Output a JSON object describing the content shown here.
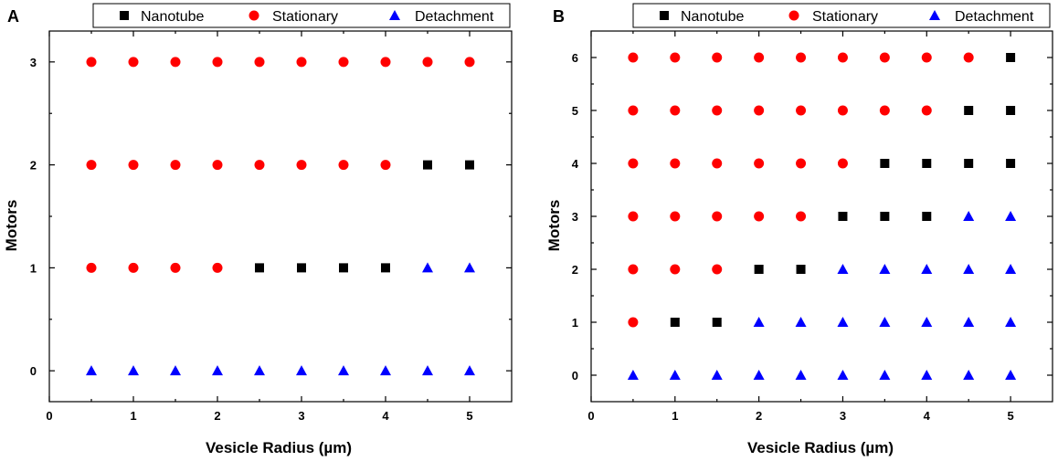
{
  "chart_data": [
    {
      "type": "scatter",
      "panel_label": "A",
      "xlabel": "Vesicle Radius (µm)",
      "ylabel": "Motors",
      "xlim": [
        0,
        5.5
      ],
      "ylim": [
        -0.3,
        3.3
      ],
      "xticks": [
        0,
        1,
        2,
        3,
        4,
        5
      ],
      "yticks": [
        0,
        1,
        2,
        3
      ],
      "legend_position": "top",
      "series": [
        {
          "name": "Nanotube",
          "marker": "square",
          "color": "#000000",
          "points": [
            [
              2.5,
              1
            ],
            [
              3,
              1
            ],
            [
              3.5,
              1
            ],
            [
              4,
              1
            ],
            [
              4.5,
              2
            ],
            [
              5,
              2
            ]
          ]
        },
        {
          "name": "Stationary",
          "marker": "circle",
          "color": "#ff0000",
          "points": [
            [
              0.5,
              1
            ],
            [
              1,
              1
            ],
            [
              1.5,
              1
            ],
            [
              2,
              1
            ],
            [
              0.5,
              2
            ],
            [
              1,
              2
            ],
            [
              1.5,
              2
            ],
            [
              2,
              2
            ],
            [
              2.5,
              2
            ],
            [
              3,
              2
            ],
            [
              3.5,
              2
            ],
            [
              4,
              2
            ],
            [
              0.5,
              3
            ],
            [
              1,
              3
            ],
            [
              1.5,
              3
            ],
            [
              2,
              3
            ],
            [
              2.5,
              3
            ],
            [
              3,
              3
            ],
            [
              3.5,
              3
            ],
            [
              4,
              3
            ],
            [
              4.5,
              3
            ],
            [
              5,
              3
            ]
          ]
        },
        {
          "name": "Detachment",
          "marker": "triangle",
          "color": "#0000ff",
          "points": [
            [
              0.5,
              0
            ],
            [
              1,
              0
            ],
            [
              1.5,
              0
            ],
            [
              2,
              0
            ],
            [
              2.5,
              0
            ],
            [
              3,
              0
            ],
            [
              3.5,
              0
            ],
            [
              4,
              0
            ],
            [
              4.5,
              0
            ],
            [
              5,
              0
            ],
            [
              4.5,
              1
            ],
            [
              5,
              1
            ]
          ]
        }
      ]
    },
    {
      "type": "scatter",
      "panel_label": "B",
      "xlabel": "Vesicle Radius (µm)",
      "ylabel": "Motors",
      "xlim": [
        0,
        5.5
      ],
      "ylim": [
        -0.5,
        6.5
      ],
      "xticks": [
        0,
        1,
        2,
        3,
        4,
        5
      ],
      "yticks": [
        0,
        1,
        2,
        3,
        4,
        5,
        6
      ],
      "legend_position": "top",
      "series": [
        {
          "name": "Nanotube",
          "marker": "square",
          "color": "#000000",
          "points": [
            [
              1,
              1
            ],
            [
              1.5,
              1
            ],
            [
              2,
              2
            ],
            [
              2.5,
              2
            ],
            [
              3,
              3
            ],
            [
              3.5,
              3
            ],
            [
              4,
              3
            ],
            [
              3.5,
              4
            ],
            [
              4,
              4
            ],
            [
              4.5,
              4
            ],
            [
              5,
              4
            ],
            [
              4.5,
              5
            ],
            [
              5,
              5
            ],
            [
              5,
              6
            ]
          ]
        },
        {
          "name": "Stationary",
          "marker": "circle",
          "color": "#ff0000",
          "points": [
            [
              0.5,
              1
            ],
            [
              0.5,
              2
            ],
            [
              1,
              2
            ],
            [
              1.5,
              2
            ],
            [
              0.5,
              3
            ],
            [
              1,
              3
            ],
            [
              1.5,
              3
            ],
            [
              2,
              3
            ],
            [
              2.5,
              3
            ],
            [
              0.5,
              4
            ],
            [
              1,
              4
            ],
            [
              1.5,
              4
            ],
            [
              2,
              4
            ],
            [
              2.5,
              4
            ],
            [
              3,
              4
            ],
            [
              0.5,
              5
            ],
            [
              1,
              5
            ],
            [
              1.5,
              5
            ],
            [
              2,
              5
            ],
            [
              2.5,
              5
            ],
            [
              3,
              5
            ],
            [
              3.5,
              5
            ],
            [
              4,
              5
            ],
            [
              0.5,
              6
            ],
            [
              1,
              6
            ],
            [
              1.5,
              6
            ],
            [
              2,
              6
            ],
            [
              2.5,
              6
            ],
            [
              3,
              6
            ],
            [
              3.5,
              6
            ],
            [
              4,
              6
            ],
            [
              4.5,
              6
            ]
          ]
        },
        {
          "name": "Detachment",
          "marker": "triangle",
          "color": "#0000ff",
          "points": [
            [
              0.5,
              0
            ],
            [
              1,
              0
            ],
            [
              1.5,
              0
            ],
            [
              2,
              0
            ],
            [
              2.5,
              0
            ],
            [
              3,
              0
            ],
            [
              3.5,
              0
            ],
            [
              4,
              0
            ],
            [
              4.5,
              0
            ],
            [
              5,
              0
            ],
            [
              2,
              1
            ],
            [
              2.5,
              1
            ],
            [
              3,
              1
            ],
            [
              3.5,
              1
            ],
            [
              4,
              1
            ],
            [
              4.5,
              1
            ],
            [
              5,
              1
            ],
            [
              3,
              2
            ],
            [
              3.5,
              2
            ],
            [
              4,
              2
            ],
            [
              4.5,
              2
            ],
            [
              5,
              2
            ],
            [
              4.5,
              3
            ],
            [
              5,
              3
            ]
          ]
        }
      ]
    }
  ]
}
